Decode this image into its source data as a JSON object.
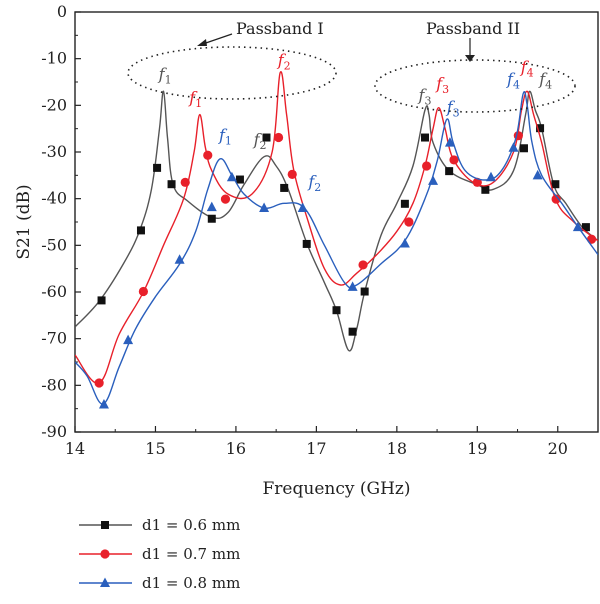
{
  "chart_data": {
    "type": "line",
    "xlabel": "Frequency (GHz)",
    "ylabel": "S21 (dB)",
    "xlim": [
      14,
      20.5
    ],
    "ylim": [
      -90,
      0
    ],
    "xticks": [
      "14",
      "15",
      "16",
      "17",
      "18",
      "19",
      "20"
    ],
    "yticks": [
      "0",
      "-10",
      "-20",
      "-30",
      "-40",
      "-50",
      "-60",
      "-70",
      "-80",
      "-90"
    ],
    "grid": false,
    "legend_position": "bottom-left",
    "series": [
      {
        "name": "d1 = 0.6 mm",
        "color": "#555555",
        "marker": "square",
        "line": [
          [
            14.0,
            -67.5
          ],
          [
            14.3,
            -62
          ],
          [
            14.6,
            -54
          ],
          [
            14.8,
            -47
          ],
          [
            14.95,
            -38
          ],
          [
            15.05,
            -25
          ],
          [
            15.1,
            -17
          ],
          [
            15.15,
            -27
          ],
          [
            15.22,
            -37
          ],
          [
            15.4,
            -40.5
          ],
          [
            15.7,
            -44
          ],
          [
            15.9,
            -43
          ],
          [
            16.1,
            -37
          ],
          [
            16.35,
            -31
          ],
          [
            16.5,
            -33
          ],
          [
            16.65,
            -38
          ],
          [
            16.88,
            -49.5
          ],
          [
            17.1,
            -58
          ],
          [
            17.25,
            -64
          ],
          [
            17.4,
            -72.5
          ],
          [
            17.5,
            -68
          ],
          [
            17.6,
            -60
          ],
          [
            17.8,
            -48
          ],
          [
            18.0,
            -41
          ],
          [
            18.2,
            -33
          ],
          [
            18.35,
            -21
          ],
          [
            18.4,
            -22
          ],
          [
            18.45,
            -28
          ],
          [
            18.65,
            -34
          ],
          [
            19.0,
            -37
          ],
          [
            19.2,
            -38
          ],
          [
            19.45,
            -34
          ],
          [
            19.6,
            -22
          ],
          [
            19.65,
            -17
          ],
          [
            19.72,
            -21
          ],
          [
            19.8,
            -25
          ],
          [
            19.95,
            -37
          ],
          [
            20.1,
            -41
          ],
          [
            20.3,
            -46
          ],
          [
            20.5,
            -49
          ]
        ],
        "markers": [
          [
            14.33,
            -61.8
          ],
          [
            14.82,
            -46.8
          ],
          [
            15.02,
            -33.4
          ],
          [
            15.2,
            -36.9
          ],
          [
            15.7,
            -44.3
          ],
          [
            16.05,
            -35.9
          ],
          [
            16.38,
            -26.9
          ],
          [
            16.6,
            -37.7
          ],
          [
            16.88,
            -49.7
          ],
          [
            17.25,
            -63.9
          ],
          [
            17.45,
            -68.5
          ],
          [
            17.6,
            -59.9
          ],
          [
            18.1,
            -41.1
          ],
          [
            18.35,
            -26.9
          ],
          [
            18.65,
            -34.1
          ],
          [
            19.1,
            -38.1
          ],
          [
            19.58,
            -29.2
          ],
          [
            19.78,
            -24.9
          ],
          [
            19.97,
            -36.9
          ],
          [
            20.35,
            -46.1
          ]
        ]
      },
      {
        "name": "d1 = 0.7 mm",
        "color": "#e8202a",
        "marker": "circle",
        "line": [
          [
            14.0,
            -73.5
          ],
          [
            14.3,
            -79.5
          ],
          [
            14.55,
            -69
          ],
          [
            14.85,
            -60
          ],
          [
            15.1,
            -50
          ],
          [
            15.35,
            -40
          ],
          [
            15.48,
            -30
          ],
          [
            15.55,
            -22
          ],
          [
            15.62,
            -29
          ],
          [
            15.7,
            -34
          ],
          [
            15.9,
            -39
          ],
          [
            16.2,
            -39
          ],
          [
            16.45,
            -30
          ],
          [
            16.55,
            -13
          ],
          [
            16.63,
            -22
          ],
          [
            16.72,
            -34
          ],
          [
            16.9,
            -45
          ],
          [
            17.1,
            -55
          ],
          [
            17.3,
            -58.5
          ],
          [
            17.5,
            -56
          ],
          [
            17.75,
            -52
          ],
          [
            18.0,
            -47
          ],
          [
            18.2,
            -41
          ],
          [
            18.35,
            -33
          ],
          [
            18.45,
            -25
          ],
          [
            18.52,
            -20.5
          ],
          [
            18.6,
            -25
          ],
          [
            18.7,
            -31.5
          ],
          [
            18.95,
            -36.5
          ],
          [
            19.2,
            -36.5
          ],
          [
            19.45,
            -30
          ],
          [
            19.55,
            -21
          ],
          [
            19.62,
            -17
          ],
          [
            19.7,
            -22
          ],
          [
            19.8,
            -28
          ],
          [
            19.97,
            -40
          ],
          [
            20.2,
            -45
          ],
          [
            20.5,
            -49
          ]
        ],
        "markers": [
          [
            14.3,
            -79.5
          ],
          [
            14.85,
            -59.9
          ],
          [
            15.37,
            -36.5
          ],
          [
            15.65,
            -30.7
          ],
          [
            15.87,
            -40.1
          ],
          [
            16.53,
            -26.9
          ],
          [
            16.7,
            -34.8
          ],
          [
            17.58,
            -54.2
          ],
          [
            18.15,
            -45.0
          ],
          [
            18.37,
            -33.0
          ],
          [
            18.71,
            -31.7
          ],
          [
            19.0,
            -36.5
          ],
          [
            19.51,
            -26.5
          ],
          [
            19.98,
            -40.1
          ],
          [
            20.42,
            -48.7
          ]
        ]
      },
      {
        "name": "d1 = 0.8 mm",
        "color": "#2a5fbd",
        "marker": "triangle",
        "line": [
          [
            14.0,
            -75
          ],
          [
            14.15,
            -78
          ],
          [
            14.35,
            -84
          ],
          [
            14.55,
            -76
          ],
          [
            14.75,
            -68
          ],
          [
            15.0,
            -61
          ],
          [
            15.3,
            -54
          ],
          [
            15.5,
            -47
          ],
          [
            15.65,
            -38
          ],
          [
            15.8,
            -31.5
          ],
          [
            15.95,
            -35
          ],
          [
            16.1,
            -39
          ],
          [
            16.35,
            -42
          ],
          [
            16.6,
            -41
          ],
          [
            16.85,
            -42
          ],
          [
            17.1,
            -50
          ],
          [
            17.35,
            -58
          ],
          [
            17.5,
            -58.5
          ],
          [
            17.8,
            -54
          ],
          [
            18.1,
            -49
          ],
          [
            18.35,
            -40
          ],
          [
            18.5,
            -32
          ],
          [
            18.62,
            -23
          ],
          [
            18.7,
            -28
          ],
          [
            18.85,
            -34
          ],
          [
            19.1,
            -36
          ],
          [
            19.3,
            -34
          ],
          [
            19.48,
            -27
          ],
          [
            19.57,
            -17.5
          ],
          [
            19.62,
            -20
          ],
          [
            19.68,
            -28
          ],
          [
            19.8,
            -35
          ],
          [
            20.05,
            -41
          ],
          [
            20.25,
            -46
          ],
          [
            20.5,
            -52
          ]
        ],
        "markers": [
          [
            14.36,
            -84.1
          ],
          [
            14.66,
            -70.3
          ],
          [
            15.3,
            -53.1
          ],
          [
            15.7,
            -41.8
          ],
          [
            15.95,
            -35.4
          ],
          [
            16.35,
            -42.0
          ],
          [
            16.83,
            -42.0
          ],
          [
            17.45,
            -58.9
          ],
          [
            18.1,
            -49.6
          ],
          [
            18.45,
            -36.2
          ],
          [
            18.66,
            -28.0
          ],
          [
            19.17,
            -35.4
          ],
          [
            19.45,
            -29.1
          ],
          [
            19.75,
            -35.0
          ],
          [
            20.25,
            -46.1
          ]
        ]
      }
    ],
    "annotations": [
      {
        "label": "f",
        "sub": "1",
        "x": 15.12,
        "y": -14.5,
        "color": "#555555"
      },
      {
        "label": "f",
        "sub": "1",
        "x": 15.5,
        "y": -19.5,
        "color": "#e8202a"
      },
      {
        "label": "f",
        "sub": "1",
        "x": 15.87,
        "y": -27.5,
        "color": "#2a5fbd"
      },
      {
        "label": "f",
        "sub": "2",
        "x": 16.3,
        "y": -28.5,
        "color": "#555555"
      },
      {
        "label": "f",
        "sub": "2",
        "x": 16.6,
        "y": -11.5,
        "color": "#e8202a"
      },
      {
        "label": "f",
        "sub": "2",
        "x": 16.98,
        "y": -37.5,
        "color": "#2a5fbd"
      },
      {
        "label": "f",
        "sub": "3",
        "x": 18.35,
        "y": -19,
        "color": "#555555"
      },
      {
        "label": "f",
        "sub": "3",
        "x": 18.57,
        "y": -16.5,
        "color": "#e8202a"
      },
      {
        "label": "f",
        "sub": "3",
        "x": 18.7,
        "y": -21.5,
        "color": "#2a5fbd"
      },
      {
        "label": "f",
        "sub": "4",
        "x": 19.45,
        "y": -15.5,
        "color": "#2a5fbd"
      },
      {
        "label": "f",
        "sub": "4",
        "x": 19.62,
        "y": -13,
        "color": "#e8202a"
      },
      {
        "label": "f",
        "sub": "4",
        "x": 19.85,
        "y": -15.5,
        "color": "#555555"
      }
    ],
    "passband_labels": [
      "Passband I",
      "Passband II"
    ]
  }
}
